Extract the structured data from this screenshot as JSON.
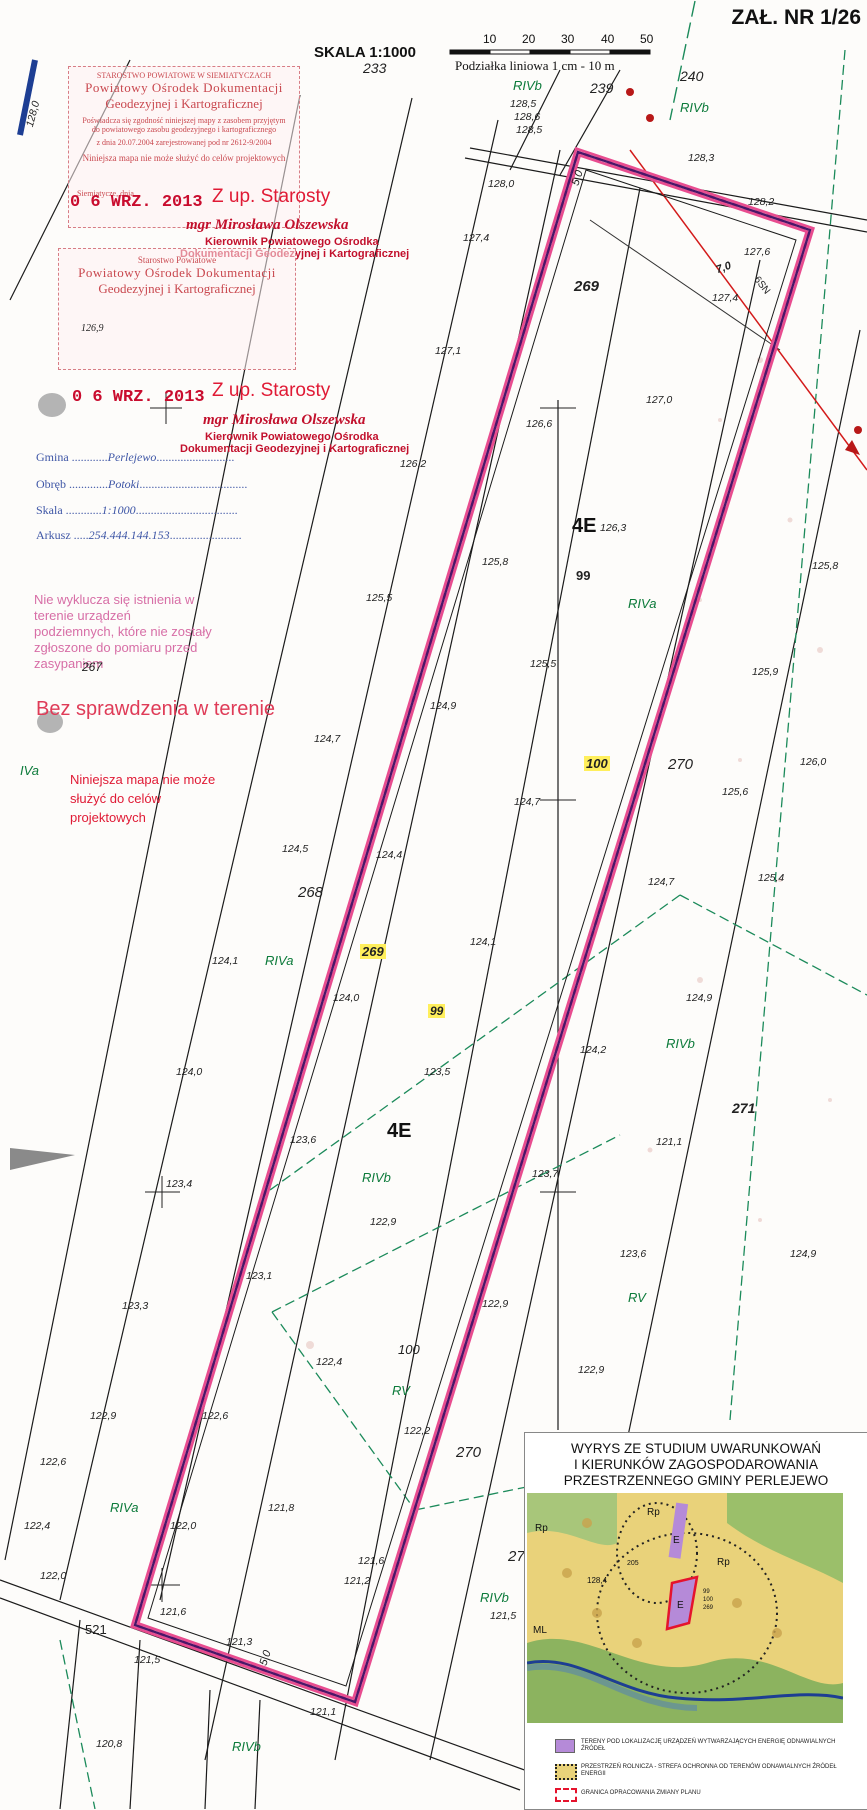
{
  "header": {
    "attachment": "ZAŁ. NR 1/26",
    "scale": "SKALA 1:1000",
    "scalebar_ticks": [
      "10",
      "20",
      "30",
      "40",
      "50"
    ],
    "scalebar_caption": "Podziałka liniowa 1 cm - 10 m"
  },
  "stamp1": {
    "line1": "STAROSTWO POWIATOWE W SIEMIATYCZACH",
    "line2": "Powiatowy Ośrodek Dokumentacji",
    "line3": "Geodezyjnej i Kartograficznej",
    "line4": "Poświadcza się zgodność niniejszej mapy z zasobem przyjętym do powiatowego zasobu geodezyjnego i kartograficznego",
    "line5": "z dnia 20.07.2004 zarejestrowanej pod nr 2612-9/2004",
    "line6": "Niniejsza mapa nie może służyć do celów projektowych",
    "date": "0 6 WRZ. 2013",
    "sign_place": "Siemiatycze, dnia"
  },
  "signature1": {
    "zup": "Z up. Starosty",
    "name": "mgr Mirosława Olszewska",
    "title1": "Kierownik Powiatowego Ośrodka",
    "title2": "Dokumentacji Geodezyjnej i Kartograficznej"
  },
  "stamp2": {
    "line1": "Starostwo Powiatowe",
    "line2": "Powiatowy Ośrodek Dokumentacji",
    "line3": "Geodezyjnej i Kartograficznej",
    "line4": "126,9",
    "date": "0 6 WRZ. 2013"
  },
  "signature2": {
    "zup": "Z up. Starosty",
    "name": "mgr Mirosława Olszewska",
    "title1": "Kierownik Powiatowego Ośrodka",
    "title2": "Dokumentacji Geodezyjnej i Kartograficznej"
  },
  "fields": {
    "gmina_label": "Gmina",
    "gmina_value": "Perlejewo",
    "obreb_label": "Obręb",
    "obreb_value": "Potoki",
    "skala_label": "Skala",
    "skala_value": "1:1000",
    "arkusz_label": "Arkusz",
    "arkusz_value": "254.444.144.153"
  },
  "notes": {
    "pink": "Nie wyklucza się istnienia w terenie urządzeń podziemnych, które nie zostały zgłoszone do pomiaru przed zasypaniem",
    "plot267": "267",
    "bez": "Bez sprawdzenia w terenie",
    "niniejsza": "Niniejsza mapa nie może służyć do celów projektowych"
  },
  "map_labels": {
    "plots": [
      "233",
      "239",
      "240",
      "269",
      "268",
      "270",
      "271",
      "521",
      "27"
    ],
    "highlighted": [
      "100",
      "269",
      "99"
    ],
    "class_4e": "4E",
    "soil": [
      "RIVb",
      "RIVa",
      "RIVa",
      "RIVb",
      "RIVb",
      "RIVa",
      "RV",
      "RV",
      "RIVa",
      "RIVb",
      "RIVb",
      "IVa",
      "RIVb"
    ],
    "dims": [
      "5,0",
      "7,0",
      "5,0",
      "6SN"
    ],
    "elevations": [
      "128,5",
      "128,6",
      "128,5",
      "128,0",
      "127,4",
      "127,1",
      "126,6",
      "126,2",
      "125,8",
      "125,5",
      "125,5",
      "124,9",
      "124,7",
      "124,7",
      "124,5",
      "124,4",
      "124,1",
      "124,1",
      "124,0",
      "124,0",
      "123,6",
      "123,5",
      "123,4",
      "123,3",
      "123,1",
      "122,9",
      "122,9",
      "122,9",
      "122,6",
      "122,4",
      "122,2",
      "122,0",
      "121,8",
      "121,6",
      "121,2",
      "121,5",
      "121,3",
      "121,1",
      "120,8",
      "128,3",
      "128,2",
      "127,6",
      "127,4",
      "127,0",
      "126,3",
      "125,8",
      "125,9",
      "126,0",
      "125,6",
      "125,4",
      "124,7",
      "124,9",
      "124,2",
      "123,7",
      "121,1",
      "123,6",
      "124,9",
      "122,9",
      "128,0",
      "99"
    ]
  },
  "inset": {
    "title1": "WYRYS ZE STUDIUM UWARUNKOWAŃ",
    "title2": "I KIERUNKÓW ZAGOSPODAROWANIA",
    "title3": "PRZESTRZENNEGO GMINY PERLEJEWO",
    "legend1": "TERENY POD LOKALIZACJĘ URZĄDZEŃ WYTWARZAJĄCYCH ENERGIĘ ODNAWIALNYCH ŹRÓDEŁ",
    "legend2": "PRZESTRZEŃ ROLNICZA - STREFA OCHRONNA OD TERENÓW ODNAWIALNYCH ŹRÓDEŁ ENERGII",
    "legend3": "GRANICA OPRACOWANIA ZMIANY PLANU",
    "map_tags": [
      "Rp",
      "Rp",
      "Rp",
      "E",
      "E",
      "ML",
      "205",
      "128,4",
      "99",
      "100",
      "269"
    ]
  },
  "colors": {
    "boundary": "#5b1e7a",
    "stamp_red": "#e01a35",
    "soil_green": "#0c7a3a",
    "inset_yellow": "#e9d27a",
    "inset_green": "#8cb35f"
  }
}
